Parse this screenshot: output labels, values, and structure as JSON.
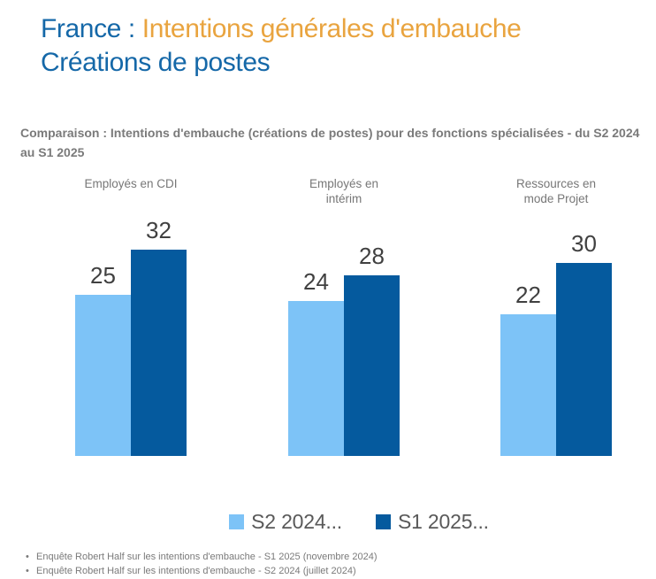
{
  "title": {
    "prefix": "France : ",
    "highlight": "Intentions générales d'embauche",
    "line2": "Créations de postes"
  },
  "subtitle": "Comparaison : Intentions d'embauche (créations de postes) pour des fonctions spécialisées - du S2 2024 au S1 2025",
  "chart_data": {
    "type": "bar",
    "title": "Comparaison : Intentions d'embauche (créations de postes) pour des fonctions spécialisées - du S2 2024 au S1 2025",
    "categories": [
      "Employés en CDI",
      "Employés en\nintérim",
      "Ressources en\nmode Projet"
    ],
    "series": [
      {
        "name": "S2 2024...",
        "color": "#7dc3f7",
        "values": [
          25,
          24,
          22
        ]
      },
      {
        "name": "S1 2025...",
        "color": "#055a9e",
        "values": [
          32,
          28,
          30
        ]
      }
    ],
    "ylim": [
      0,
      34
    ],
    "grid": false,
    "value_labels": true,
    "legend_position": "bottom",
    "xlabel": "",
    "ylabel": ""
  },
  "legend": [
    {
      "label": "S2 2024...",
      "color": "#7dc3f7"
    },
    {
      "label": "S1 2025...",
      "color": "#055a9e"
    }
  ],
  "footnotes": {
    "bullet_char": "•",
    "items": [
      "Enquête Robert Half sur les intentions d'embauche - S1 2025 (novembre 2024)",
      "Enquête Robert Half sur les intentions d'embauche - S2 2024 (juillet 2024)"
    ]
  },
  "colors": {
    "title_blue": "#1568a8",
    "title_orange": "#e9a43f",
    "series_light_blue": "#7dc3f7",
    "series_dark_blue": "#055a9e",
    "subtitle_gray": "#7a7a7a",
    "value_label_gray": "#404040",
    "legend_text_gray": "#595959"
  }
}
